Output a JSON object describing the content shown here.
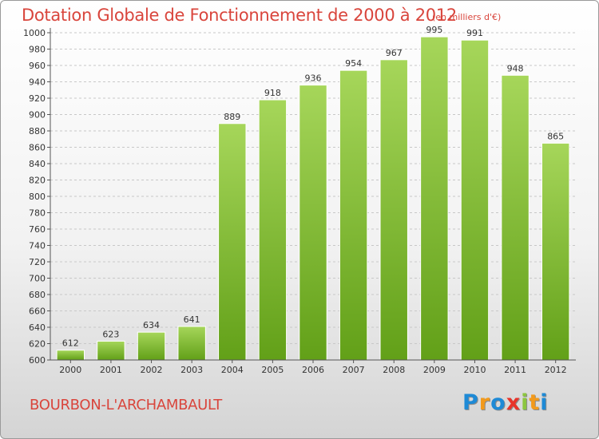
{
  "header": {
    "title": "Dotation Globale de Fonctionnement de 2000 à 2012",
    "unit": "(en milliers d'€)"
  },
  "footer": {
    "commune": "BOURBON-L'ARCHAMBAULT",
    "logo_text": "Proxiti"
  },
  "colors": {
    "accent": "#d9453c",
    "bar_light": "#a6d65a",
    "bar_dark": "#62a018",
    "logo_letters": [
      "#1e8ad6",
      "#f29a1c",
      "#1e8ad6",
      "#e8342a",
      "#8cc63f",
      "#f29a1c",
      "#1e8ad6"
    ]
  },
  "chart_data": {
    "type": "bar",
    "title": "Dotation Globale de Fonctionnement de 2000 à 2012",
    "xlabel": "",
    "ylabel": "",
    "categories": [
      "2000",
      "2001",
      "2002",
      "2003",
      "2004",
      "2005",
      "2006",
      "2007",
      "2008",
      "2009",
      "2010",
      "2011",
      "2012"
    ],
    "values": [
      612,
      623,
      634,
      641,
      889,
      918,
      936,
      954,
      967,
      995,
      991,
      948,
      865
    ],
    "ylim": [
      600,
      1000
    ],
    "yticks": [
      600,
      620,
      640,
      660,
      680,
      700,
      720,
      740,
      760,
      780,
      800,
      820,
      840,
      860,
      880,
      900,
      920,
      940,
      960,
      980,
      1000
    ],
    "grid": true,
    "data_labels": true
  }
}
